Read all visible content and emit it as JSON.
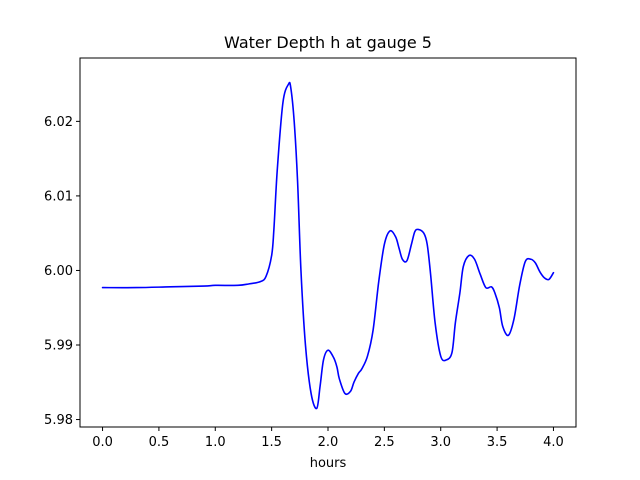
{
  "chart_data": {
    "type": "line",
    "title": "Water Depth h at gauge 5",
    "xlabel": "hours",
    "ylabel": "",
    "xlim": [
      -0.2,
      4.2
    ],
    "ylim": [
      5.979,
      6.0285
    ],
    "xticks": [
      0.0,
      0.5,
      1.0,
      1.5,
      2.0,
      2.5,
      3.0,
      3.5,
      4.0
    ],
    "xtick_labels": [
      "0.0",
      "0.5",
      "1.0",
      "1.5",
      "2.0",
      "2.5",
      "3.0",
      "3.5",
      "4.0"
    ],
    "yticks": [
      5.98,
      5.99,
      6.0,
      6.01,
      6.02
    ],
    "ytick_labels": [
      "5.98",
      "5.99",
      "6.00",
      "6.01",
      "6.02"
    ],
    "grid": false,
    "series": [
      {
        "color": "#0000ff",
        "x": [
          0.0,
          0.3,
          0.6,
          0.9,
          1.0,
          1.2,
          1.3,
          1.4,
          1.45,
          1.5,
          1.52,
          1.55,
          1.6,
          1.65,
          1.67,
          1.7,
          1.73,
          1.76,
          1.8,
          1.85,
          1.9,
          1.93,
          1.96,
          2.0,
          2.05,
          2.08,
          2.1,
          2.15,
          2.2,
          2.23,
          2.27,
          2.3,
          2.35,
          2.4,
          2.45,
          2.5,
          2.55,
          2.6,
          2.63,
          2.66,
          2.7,
          2.74,
          2.77,
          2.8,
          2.85,
          2.88,
          2.91,
          2.95,
          3.0,
          3.05,
          3.1,
          3.13,
          3.17,
          3.2,
          3.25,
          3.3,
          3.35,
          3.4,
          3.45,
          3.48,
          3.52,
          3.55,
          3.6,
          3.65,
          3.7,
          3.75,
          3.8,
          3.84,
          3.88,
          3.92,
          3.96,
          4.0
        ],
        "y": [
          5.9977,
          5.9977,
          5.9978,
          5.9979,
          5.998,
          5.998,
          5.9982,
          5.9985,
          5.9992,
          6.002,
          6.0055,
          6.0135,
          6.0225,
          6.025,
          6.0245,
          6.02,
          6.012,
          6.0,
          5.99,
          5.9835,
          5.9815,
          5.9845,
          5.988,
          5.9893,
          5.9883,
          5.987,
          5.9855,
          5.9835,
          5.9838,
          5.985,
          5.9862,
          5.9868,
          5.9885,
          5.992,
          5.9985,
          6.0035,
          6.0053,
          6.0045,
          6.003,
          6.0015,
          6.0013,
          6.0035,
          6.0052,
          6.0055,
          6.005,
          6.0035,
          5.9995,
          5.993,
          5.9885,
          5.988,
          5.989,
          5.993,
          5.997,
          6.0005,
          6.002,
          6.0015,
          5.9995,
          5.9977,
          5.9978,
          5.997,
          5.995,
          5.9925,
          5.9913,
          5.9935,
          5.998,
          6.0012,
          6.0015,
          6.001,
          5.9998,
          5.999,
          5.9988,
          5.9997
        ]
      }
    ]
  }
}
